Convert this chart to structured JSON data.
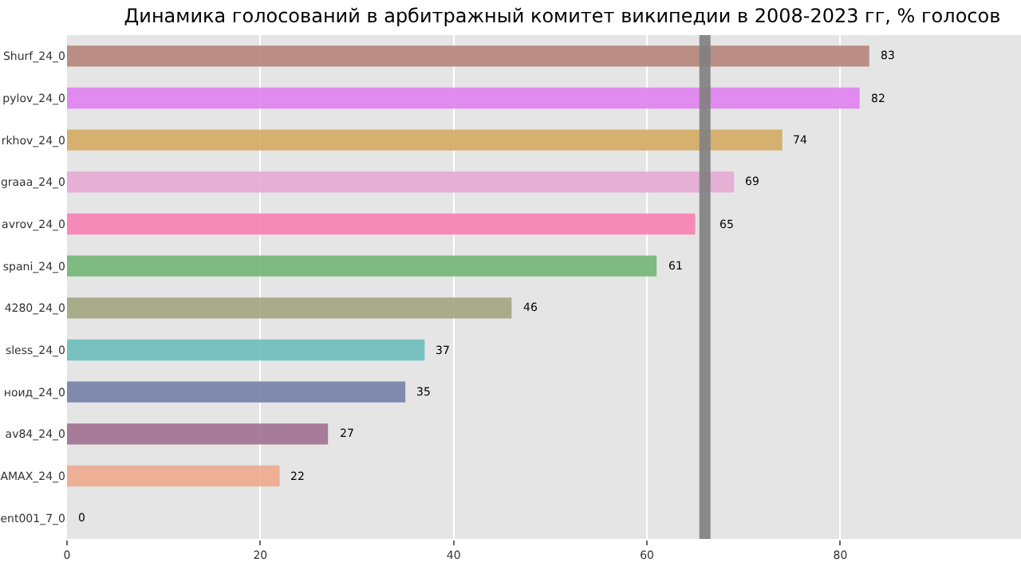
{
  "chart_data": {
    "type": "bar",
    "orientation": "horizontal",
    "title": "Динамика голосований в арбитражный комитет википедии в 2008-2023 гг, % голосов",
    "categories": [
      "Shurf_24_0",
      "pylov_24_0",
      "rkhov_24_0",
      "graaa_24_0",
      "avrov_24_0",
      "spani_24_0",
      "4280_24_0",
      "sless_24_0",
      "ноид_24_0",
      "av84_24_0",
      "AMAX_24_0",
      "ent001_7_0"
    ],
    "values": [
      83,
      82,
      74,
      69,
      65,
      61,
      46,
      37,
      35,
      27,
      22,
      0
    ],
    "colors": [
      "#b5847a",
      "#e080f0",
      "#d4aa60",
      "#e4a8d4",
      "#f77fb0",
      "#72b576",
      "#a2a581",
      "#6dbcbc",
      "#7580a6",
      "#a07090",
      "#eda98c",
      "#cccccc"
    ],
    "xlim": [
      0,
      98.7
    ],
    "xticks": [
      0,
      20,
      40,
      60,
      80
    ],
    "ref_lines": [
      {
        "axis": "x",
        "value": 66,
        "color": "#808080"
      }
    ],
    "data_labels": true,
    "grid": "x"
  }
}
